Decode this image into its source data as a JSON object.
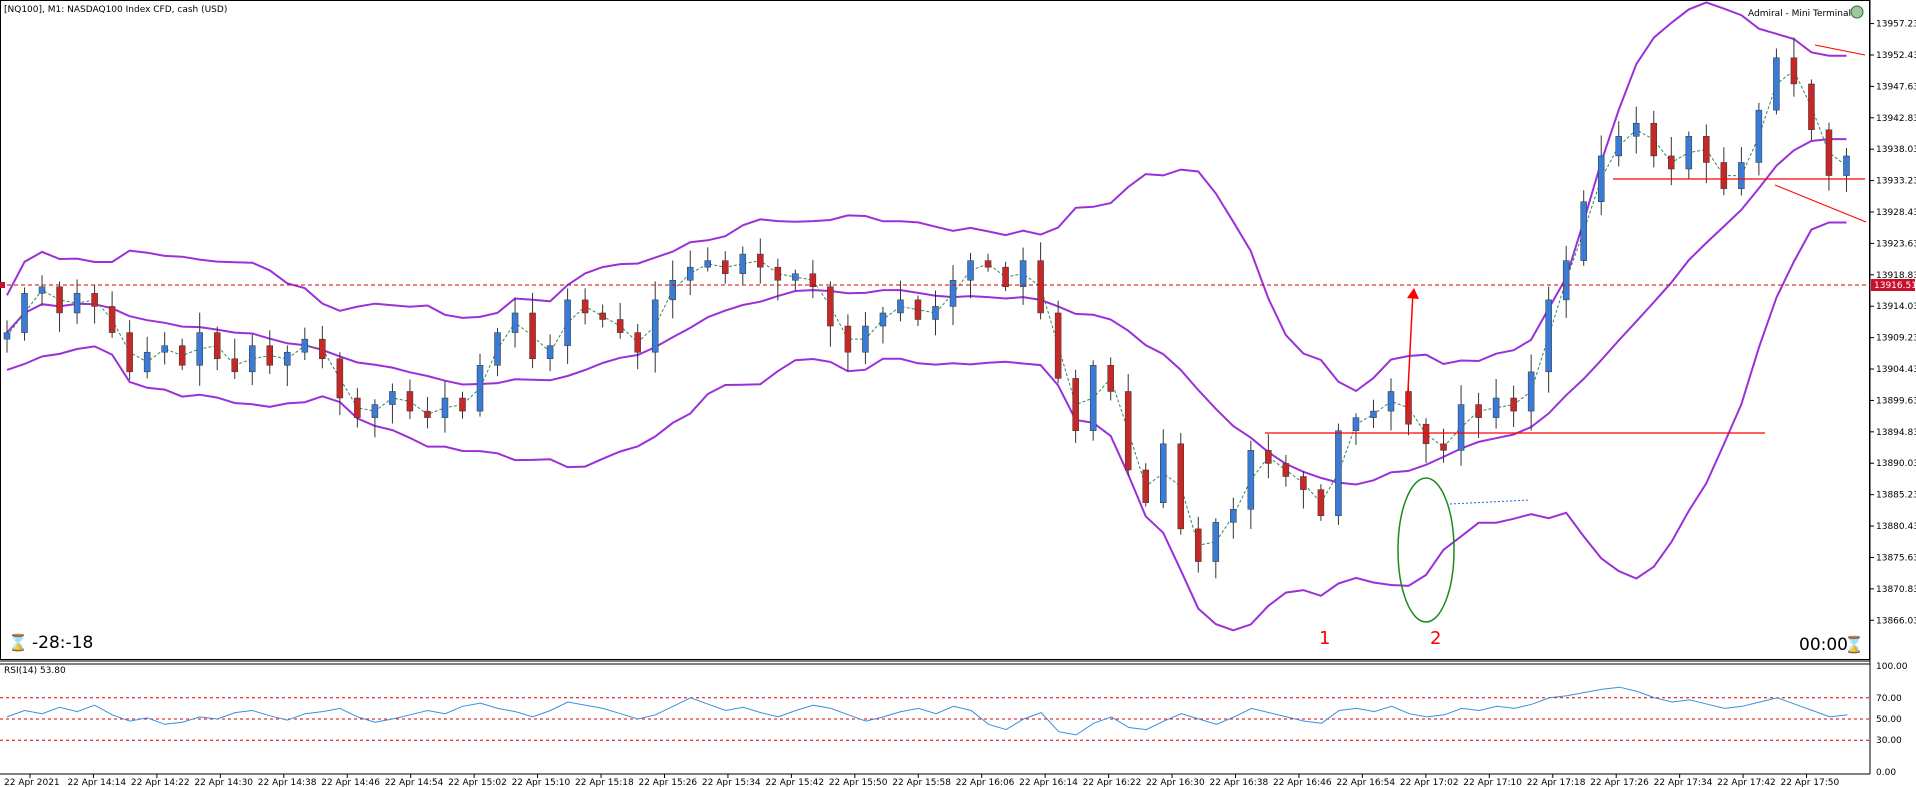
{
  "window": {
    "title": "[NQ100], M1:  NASDAQ100 Index CFD, cash (USD)",
    "terminal_label": "Admiral - Mini Terminal",
    "timer_left": "-28:-18",
    "timer_right": "00:00",
    "rsi_label": "RSI(14) 53.80",
    "current_price": "13916.51"
  },
  "colors": {
    "bull": "#3a7bd5",
    "bear": "#c62828",
    "band": "#9b30d9",
    "level": "#ff0000",
    "rsi": "#3b8fde",
    "circle": "#1a8a1a",
    "grid_dash": "#d40000"
  },
  "chart_data": [
    {
      "type": "candlestick",
      "series": [
        {
          "name": "NQ100 M1"
        },
        {
          "name": "Bollinger Bands"
        }
      ],
      "y_ticks": [
        "13957.23",
        "13952.43",
        "13947.63",
        "13942.83",
        "13938.03",
        "13933.23",
        "13928.43",
        "13923.63",
        "13918.83",
        "13914.03",
        "13909.23",
        "13904.43",
        "13899.63",
        "13894.83",
        "13890.03",
        "13885.23",
        "13880.43",
        "13875.63",
        "13870.83",
        "13866.03"
      ],
      "ylim": [
        13865.0,
        13959.0
      ],
      "x_ticks": [
        "22 Apr 2021",
        "22 Apr 14:14",
        "22 Apr 14:22",
        "22 Apr 14:30",
        "22 Apr 14:38",
        "22 Apr 14:46",
        "22 Apr 14:54",
        "22 Apr 15:02",
        "22 Apr 15:10",
        "22 Apr 15:18",
        "22 Apr 15:26",
        "22 Apr 15:34",
        "22 Apr 15:42",
        "22 Apr 15:50",
        "22 Apr 15:58",
        "22 Apr 16:06",
        "22 Apr 16:14",
        "22 Apr 16:22",
        "22 Apr 16:30",
        "22 Apr 16:38",
        "22 Apr 16:46",
        "22 Apr 16:54",
        "22 Apr 17:02",
        "22 Apr 17:10",
        "22 Apr 17:18",
        "22 Apr 17:26",
        "22 Apr 17:34",
        "22 Apr 17:42",
        "22 Apr 17:50"
      ],
      "close_path": [
        13910,
        13916,
        13917,
        13913,
        13916,
        13914,
        13910,
        13904,
        13907,
        13908,
        13905,
        13910,
        13906,
        13904,
        13908,
        13905,
        13907,
        13909,
        13906,
        13900,
        13897,
        13899,
        13901,
        13898,
        13897,
        13900,
        13898,
        13905,
        13910,
        13913,
        13906,
        13908,
        13915,
        13913,
        13912,
        13910,
        13907,
        13915,
        13918,
        13920,
        13921,
        13919,
        13922,
        13920,
        13918,
        13919,
        13917,
        13911,
        13907,
        13911,
        13913,
        13915,
        13912,
        13914,
        13918,
        13921,
        13920,
        13917,
        13921,
        13913,
        13903,
        13895,
        13905,
        13901,
        13889,
        13884,
        13893,
        13880,
        13875,
        13881,
        13883,
        13892,
        13890,
        13888,
        13886,
        13882,
        13895,
        13897,
        13898,
        13901,
        13896,
        13893,
        13892,
        13899,
        13897,
        13900,
        13898,
        13904,
        13915,
        13921,
        13930,
        13937,
        13940,
        13942,
        13937,
        13935,
        13940,
        13936,
        13932,
        13936,
        13944,
        13952,
        13948,
        13941,
        13934,
        13937
      ],
      "annotations": [
        "1",
        "2"
      ],
      "level_lines": [
        13894.4,
        13932.9,
        13916.51
      ]
    },
    {
      "type": "line",
      "series": [
        {
          "name": "RSI(14)"
        }
      ],
      "y_ticks": [
        "100.00",
        "70.00",
        "50.00",
        "30.00",
        "0.00"
      ],
      "ylim": [
        0,
        100
      ],
      "levels": [
        70,
        50,
        30
      ],
      "values": [
        52,
        58,
        55,
        61,
        57,
        63,
        54,
        48,
        51,
        45,
        47,
        52,
        50,
        56,
        58,
        53,
        49,
        55,
        57,
        60,
        52,
        47,
        50,
        54,
        58,
        55,
        62,
        65,
        60,
        57,
        52,
        58,
        66,
        63,
        60,
        55,
        50,
        54,
        62,
        70,
        64,
        58,
        61,
        56,
        52,
        58,
        63,
        60,
        54,
        48,
        52,
        57,
        60,
        55,
        62,
        58,
        45,
        40,
        50,
        56,
        38,
        35,
        46,
        52,
        42,
        40,
        48,
        55,
        50,
        45,
        52,
        60,
        56,
        52,
        48,
        46,
        58,
        60,
        57,
        62,
        55,
        52,
        54,
        60,
        58,
        62,
        60,
        64,
        70,
        72,
        75,
        78,
        80,
        76,
        70,
        66,
        68,
        64,
        60,
        62,
        66,
        70,
        64,
        58,
        52,
        54
      ]
    }
  ]
}
